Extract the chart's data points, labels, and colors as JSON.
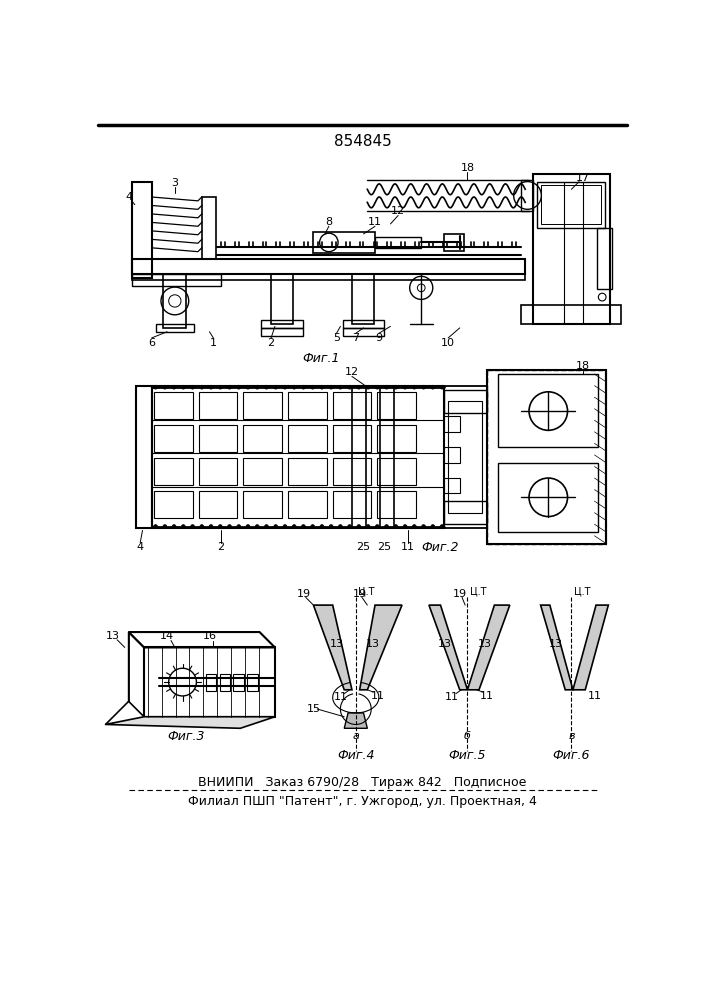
{
  "patent_number": "854845",
  "bg_color": "#ffffff",
  "footer_line1": "ВНИИПИ   Заказ 6790/28   Тираж 842   Подписное",
  "footer_line2": "Филиал ПШП \"Патент\", г. Ужгород, ул. Проектная, 4",
  "fig1_label": "Фиг.1",
  "fig2_label": "Фиг.2",
  "fig3_label": "Фиг.3",
  "fig4_label": "Фиг.4",
  "fig5_label": "Фиг.5",
  "fig6_label": "Фиг.6"
}
